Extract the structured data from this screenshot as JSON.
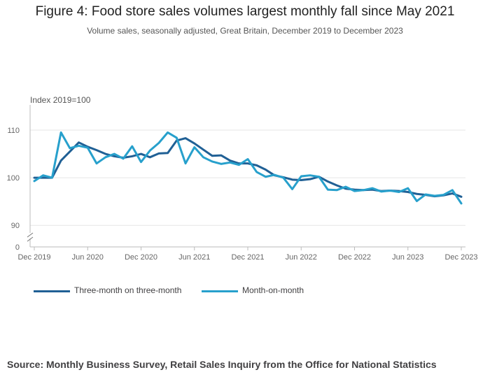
{
  "title": "Figure 4: Food store sales volumes largest monthly fall since May 2021",
  "subtitle": "Volume sales, seasonally adjusted, Great Britain, December 2019 to December 2023",
  "source": "Source: Monthly Business Survey, Retail Sales Inquiry from the Office for National Statistics",
  "colors": {
    "three_month": "#206095",
    "month_on_month": "#27a0cc",
    "grid": "#e6e6e6",
    "axis": "#bbbbbb"
  },
  "chart_data": {
    "type": "line",
    "ylabel": "Index 2019=100",
    "ylim": [
      0,
      115
    ],
    "y_axis_break": [
      0,
      89
    ],
    "y_ticks": [
      "0",
      "90",
      "100",
      "110"
    ],
    "x_ticks": [
      "Dec 2019",
      "Jun 2020",
      "Dec 2020",
      "Jun 2021",
      "Dec 2021",
      "Jun 2022",
      "Dec 2022",
      "Jun 2023",
      "Dec 2023"
    ],
    "grid": true,
    "legend_position": "bottom-left",
    "x": [
      "Dec 2019",
      "Jan 2020",
      "Feb 2020",
      "Mar 2020",
      "Apr 2020",
      "May 2020",
      "Jun 2020",
      "Jul 2020",
      "Aug 2020",
      "Sep 2020",
      "Oct 2020",
      "Nov 2020",
      "Dec 2020",
      "Jan 2021",
      "Feb 2021",
      "Mar 2021",
      "Apr 2021",
      "May 2021",
      "Jun 2021",
      "Jul 2021",
      "Aug 2021",
      "Sep 2021",
      "Oct 2021",
      "Nov 2021",
      "Dec 2021",
      "Jan 2022",
      "Feb 2022",
      "Mar 2022",
      "Apr 2022",
      "May 2022",
      "Jun 2022",
      "Jul 2022",
      "Aug 2022",
      "Sep 2022",
      "Oct 2022",
      "Nov 2022",
      "Dec 2022",
      "Jan 2023",
      "Feb 2023",
      "Mar 2023",
      "Apr 2023",
      "May 2023",
      "Jun 2023",
      "Jul 2023",
      "Aug 2023",
      "Sep 2023",
      "Oct 2023",
      "Nov 2023",
      "Dec 2023"
    ],
    "series": [
      {
        "name": "Three-month on three-month",
        "color": "#206095",
        "values": [
          100.0,
          100.0,
          100.0,
          103.6,
          105.5,
          107.4,
          106.5,
          105.8,
          105.0,
          104.5,
          104.2,
          104.5,
          105.0,
          104.3,
          105.1,
          105.2,
          107.8,
          108.3,
          107.2,
          105.9,
          104.6,
          104.7,
          103.6,
          103.0,
          103.0,
          102.6,
          101.7,
          100.5,
          100.1,
          99.6,
          99.5,
          99.7,
          100.2,
          99.2,
          98.4,
          97.7,
          97.5,
          97.4,
          97.5,
          97.2,
          97.3,
          97.2,
          97.0,
          96.6,
          96.4,
          96.1,
          96.3,
          96.7,
          96.0
        ]
      },
      {
        "name": "Month-on-month",
        "color": "#27a0cc",
        "values": [
          99.3,
          100.5,
          100.0,
          109.5,
          106.2,
          106.7,
          106.3,
          103.0,
          104.3,
          105.0,
          104.0,
          106.6,
          103.3,
          105.7,
          107.3,
          109.5,
          108.4,
          103.0,
          106.4,
          104.3,
          103.4,
          102.9,
          103.2,
          102.7,
          103.9,
          101.2,
          100.2,
          100.6,
          100.0,
          97.6,
          100.3,
          100.5,
          100.2,
          97.5,
          97.4,
          98.1,
          97.2,
          97.4,
          97.8,
          97.1,
          97.3,
          97.0,
          97.8,
          95.1,
          96.5,
          96.2,
          96.4,
          97.4,
          94.6
        ]
      }
    ]
  }
}
